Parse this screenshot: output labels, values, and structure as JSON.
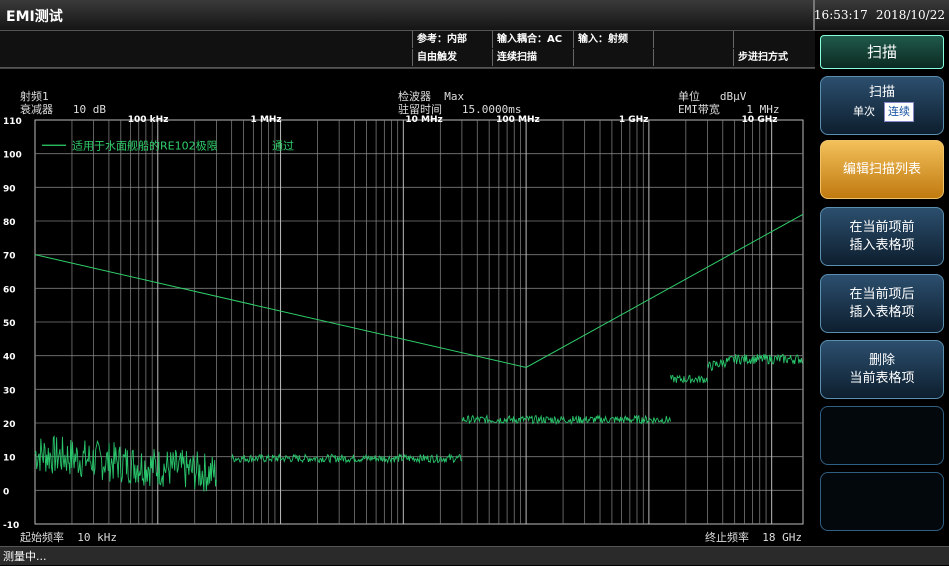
{
  "window": {
    "title": "EMI测试",
    "time": "16:53:17",
    "date": "2018/10/22"
  },
  "infobar": {
    "reference": "参考：内部",
    "trigger": "自由触发",
    "coupling": "输入耦合：AC",
    "sweep_mode": "连续扫描",
    "input": "输入：射频",
    "step_mode": "步进扫方式"
  },
  "plot_header": {
    "rf_label": "射频1",
    "attenuator": "衰减器   10 dB",
    "detector": "检波器  Max",
    "dwell": "驻留时间   15.0000ms",
    "unit": "单位   dBμV",
    "emi_bw": "EMI带宽    1 MHz",
    "start_freq": "起始频率  10 kHz",
    "stop_freq": "终止频率  18 GHz"
  },
  "chart_data": {
    "type": "line",
    "x_scale": "log",
    "xlim": [
      "10 kHz",
      "18 GHz"
    ],
    "ylim": [
      -10,
      110
    ],
    "ylabel_unit": "dBμV",
    "y_ticks": [
      110,
      100,
      90,
      80,
      70,
      60,
      50,
      40,
      30,
      20,
      10,
      0,
      -10
    ],
    "x_tick_labels": [
      "100 kHz",
      "1 MHz",
      "10 MHz",
      "100 MHz",
      "1 GHz",
      "10 GHz"
    ],
    "legend": [
      {
        "label": "适用于水面舰船的RE102极限",
        "status": "通过"
      }
    ],
    "grid": true,
    "series": [
      {
        "name": "适用于水面舰船的RE102极限",
        "color": "#2fcf6a",
        "points": [
          [
            10000.0,
            70
          ],
          [
            100000000.0,
            36.5
          ],
          [
            18000000000.0,
            82
          ]
        ]
      },
      {
        "color": "#29c46b",
        "segments": [
          {
            "x": [
              10000.0,
              300000.0
            ],
            "level": 8,
            "noise": 6
          },
          {
            "x": [
              400000.0,
              30000000.0
            ],
            "level": 9.5,
            "noise": 1.2
          },
          {
            "x": [
              30000000.0,
              1500000000.0
            ],
            "level": 21,
            "noise": 1.2
          },
          {
            "x": [
              1500000000.0,
              3000000000.0
            ],
            "level": 33,
            "noise": 1.2
          },
          {
            "x": [
              3000000000.0,
              18000000000.0
            ],
            "level": 39,
            "noise": 1.5
          }
        ]
      }
    ]
  },
  "softkeys": {
    "title": "扫描",
    "scan": {
      "label": "扫描",
      "single": "单次",
      "continuous": "连续"
    },
    "edit_table": "编辑扫描列表",
    "insert_before_1": "在当前项前",
    "insert_before_2": "插入表格项",
    "insert_after_1": "在当前项后",
    "insert_after_2": "插入表格项",
    "delete_1": "删除",
    "delete_2": "当前表格项"
  },
  "status": "测量中..."
}
